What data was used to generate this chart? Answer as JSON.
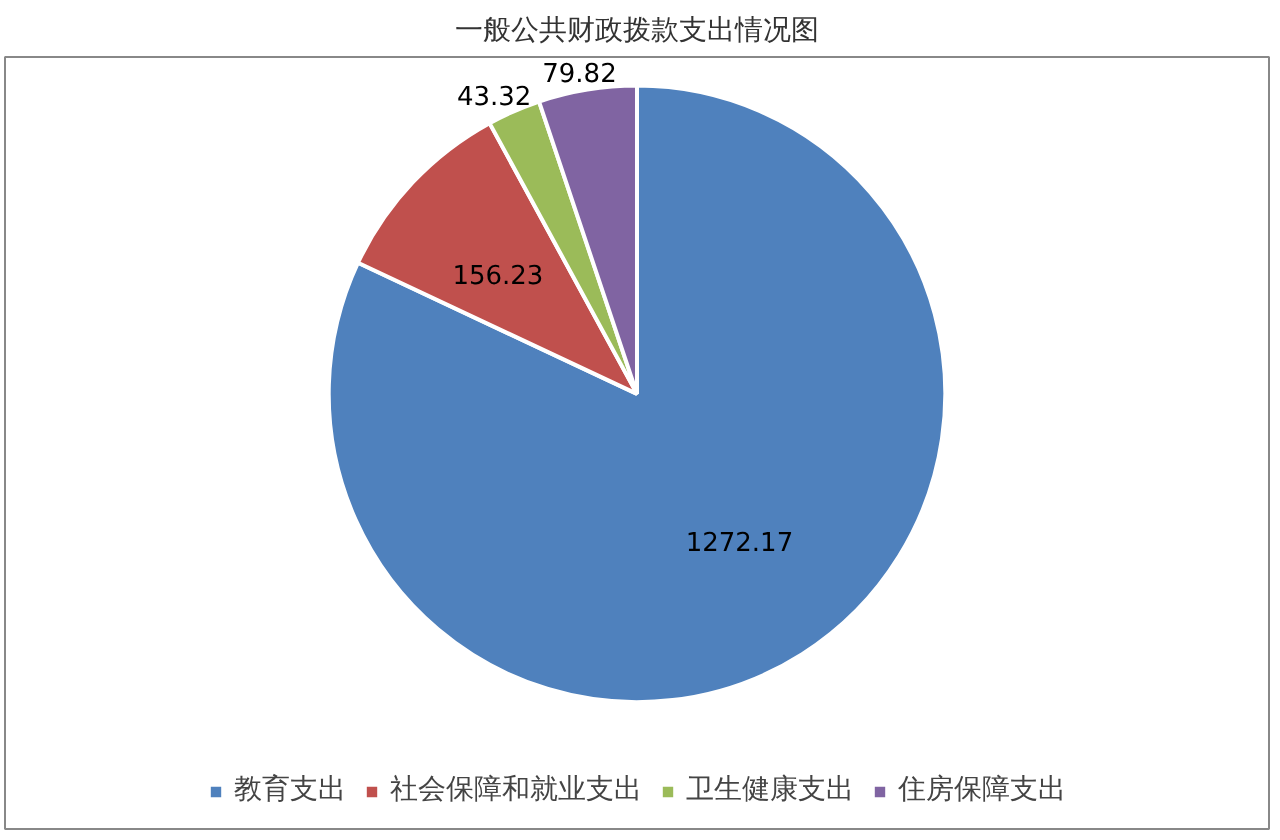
{
  "chart_data": {
    "type": "pie",
    "title": "一般公共财政拨款支出情况图",
    "categories": [
      "教育支出",
      "社会保障和就业支出",
      "卫生健康支出",
      "住房保障支出"
    ],
    "values": [
      1272.17,
      156.23,
      43.32,
      79.82
    ],
    "colors": [
      "#4f81bd",
      "#c0504d",
      "#9bbb59",
      "#8064a2"
    ],
    "data_labels": true,
    "legend": "bottom"
  }
}
